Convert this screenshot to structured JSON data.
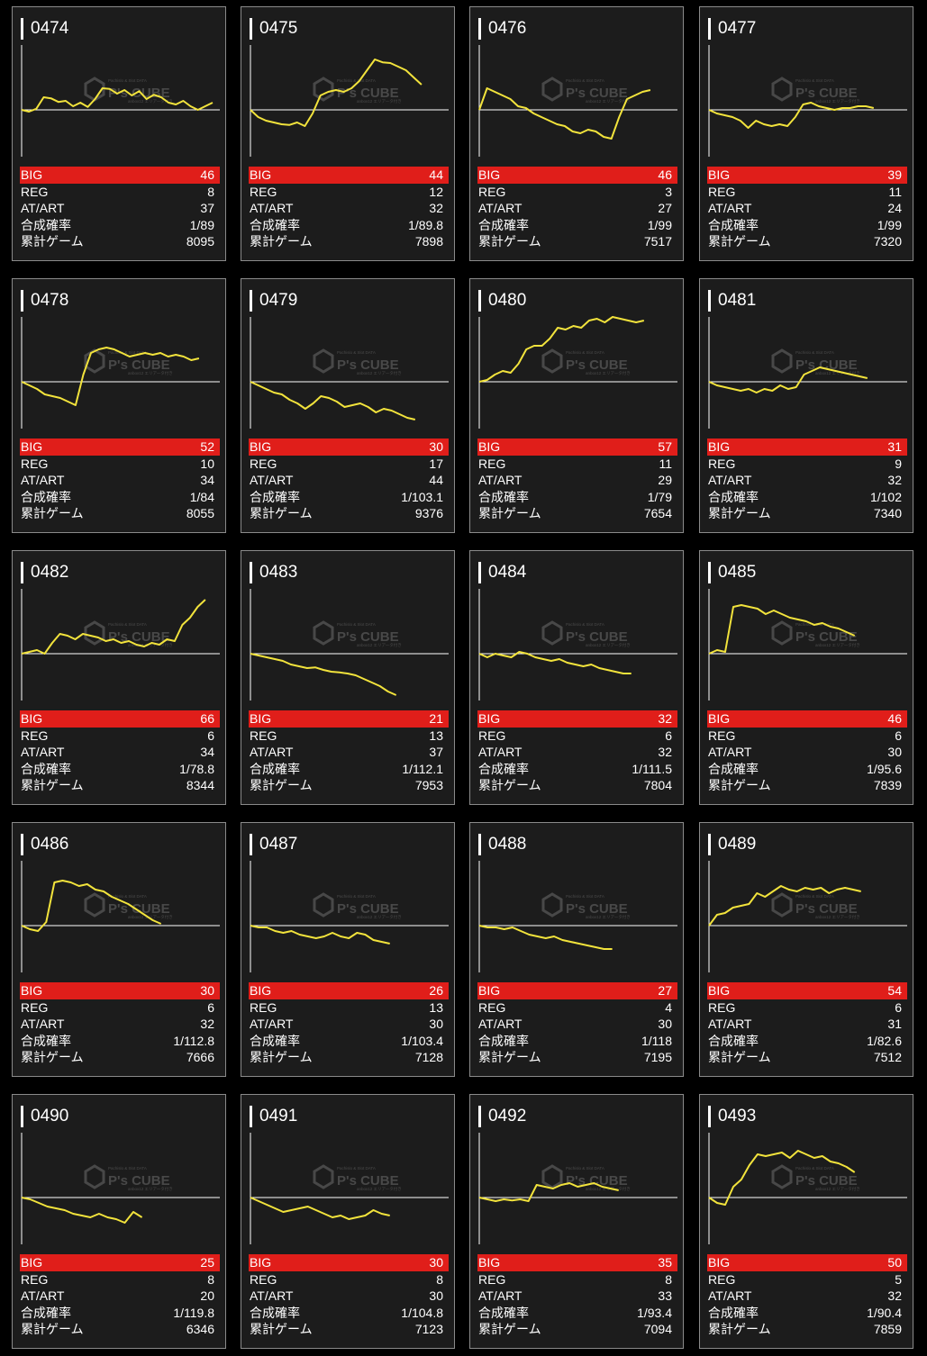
{
  "labels": {
    "big": "BIG",
    "reg": "REG",
    "atart": "AT/ART",
    "prob": "合成確率",
    "games": "累計ゲーム"
  },
  "watermark": {
    "brand": "P's CUBE",
    "top_text": "Pachislo & Slot DATA",
    "sub_text": "anbox12 エリアータ付き"
  },
  "colors": {
    "background": "#000000",
    "card": "#1c1c1c",
    "border": "#8a8a8a",
    "line": "#f2e33c",
    "big_bar": "#e01e1a",
    "axis": "#ffffff"
  },
  "machines": [
    {
      "id": "0474",
      "big": "46",
      "reg": "8",
      "atart": "37",
      "prob": "1/89",
      "games": "8095",
      "graph": [
        0,
        -0.05,
        0.03,
        0.35,
        0.32,
        0.22,
        0.25,
        0.1,
        0.2,
        0.08,
        0.3,
        0.6,
        0.58,
        0.45,
        0.55,
        0.4,
        0.52,
        0.3,
        0.42,
        0.35,
        0.2,
        0.15,
        0.25,
        0.1,
        0.0,
        0.1,
        0.2
      ]
    },
    {
      "id": "0475",
      "big": "44",
      "reg": "12",
      "atart": "32",
      "prob": "1/89.8",
      "games": "7898",
      "graph": [
        0,
        -0.2,
        -0.3,
        -0.35,
        -0.4,
        -0.42,
        -0.35,
        -0.45,
        -0.1,
        0.4,
        0.5,
        0.55,
        0.5,
        0.6,
        0.8,
        1.1,
        1.4,
        1.32,
        1.3,
        1.2,
        1.1,
        0.9,
        0.7
      ]
    },
    {
      "id": "0476",
      "big": "46",
      "reg": "3",
      "atart": "27",
      "prob": "1/99",
      "games": "7517",
      "graph": [
        0,
        0.6,
        0.5,
        0.4,
        0.3,
        0.1,
        0.05,
        -0.1,
        -0.2,
        -0.3,
        -0.4,
        -0.45,
        -0.6,
        -0.65,
        -0.55,
        -0.6,
        -0.75,
        -0.8,
        -0.2,
        0.3,
        0.4,
        0.5,
        0.55
      ]
    },
    {
      "id": "0477",
      "big": "39",
      "reg": "11",
      "atart": "24",
      "prob": "1/99",
      "games": "7320",
      "graph": [
        0,
        -0.1,
        -0.15,
        -0.2,
        -0.3,
        -0.5,
        -0.3,
        -0.4,
        -0.45,
        -0.4,
        -0.45,
        -0.2,
        0.15,
        0.2,
        0.1,
        0.05,
        0.0,
        0.05,
        0.05,
        0.1,
        0.1,
        0.05
      ]
    },
    {
      "id": "0478",
      "big": "52",
      "reg": "10",
      "atart": "34",
      "prob": "1/84",
      "games": "8055",
      "graph": [
        0,
        -0.1,
        -0.2,
        -0.35,
        -0.4,
        -0.45,
        -0.55,
        -0.65,
        0.2,
        0.8,
        0.9,
        0.95,
        0.9,
        0.8,
        0.7,
        0.75,
        0.8,
        0.75,
        0.8,
        0.7,
        0.75,
        0.7,
        0.6,
        0.65
      ]
    },
    {
      "id": "0479",
      "big": "30",
      "reg": "17",
      "atart": "44",
      "prob": "1/103.1",
      "games": "9376",
      "graph": [
        0,
        -0.1,
        -0.2,
        -0.3,
        -0.35,
        -0.5,
        -0.6,
        -0.75,
        -0.6,
        -0.4,
        -0.45,
        -0.55,
        -0.7,
        -0.65,
        -0.6,
        -0.7,
        -0.85,
        -0.75,
        -0.8,
        -0.9,
        -1.0,
        -1.05
      ]
    },
    {
      "id": "0480",
      "big": "57",
      "reg": "11",
      "atart": "29",
      "prob": "1/79",
      "games": "7654",
      "graph": [
        0,
        0.05,
        0.2,
        0.3,
        0.25,
        0.5,
        0.9,
        1.0,
        1.0,
        1.2,
        1.5,
        1.45,
        1.55,
        1.5,
        1.7,
        1.75,
        1.65,
        1.8,
        1.75,
        1.7,
        1.65,
        1.7
      ]
    },
    {
      "id": "0481",
      "big": "31",
      "reg": "9",
      "atart": "32",
      "prob": "1/102",
      "games": "7340",
      "graph": [
        0,
        -0.1,
        -0.15,
        -0.2,
        -0.25,
        -0.2,
        -0.3,
        -0.2,
        -0.25,
        -0.1,
        -0.2,
        -0.15,
        0.2,
        0.3,
        0.4,
        0.35,
        0.3,
        0.25,
        0.2,
        0.15,
        0.1
      ]
    },
    {
      "id": "0482",
      "big": "66",
      "reg": "6",
      "atart": "34",
      "prob": "1/78.8",
      "games": "8344",
      "graph": [
        0,
        0.05,
        0.1,
        0.0,
        0.3,
        0.55,
        0.5,
        0.4,
        0.55,
        0.5,
        0.45,
        0.35,
        0.4,
        0.3,
        0.35,
        0.25,
        0.2,
        0.3,
        0.25,
        0.4,
        0.35,
        0.8,
        1.0,
        1.3,
        1.5
      ]
    },
    {
      "id": "0483",
      "big": "21",
      "reg": "13",
      "atart": "37",
      "prob": "1/112.1",
      "games": "7953",
      "graph": [
        0,
        -0.05,
        -0.1,
        -0.15,
        -0.2,
        -0.3,
        -0.35,
        -0.4,
        -0.38,
        -0.45,
        -0.5,
        -0.52,
        -0.55,
        -0.6,
        -0.7,
        -0.8,
        -0.9,
        -1.05,
        -1.15
      ]
    },
    {
      "id": "0484",
      "big": "32",
      "reg": "6",
      "atart": "32",
      "prob": "1/111.5",
      "games": "7804",
      "graph": [
        0,
        -0.1,
        0.0,
        -0.05,
        -0.1,
        0.05,
        0.0,
        -0.1,
        -0.15,
        -0.2,
        -0.15,
        -0.25,
        -0.3,
        -0.35,
        -0.3,
        -0.4,
        -0.45,
        -0.5,
        -0.55,
        -0.55
      ]
    },
    {
      "id": "0485",
      "big": "46",
      "reg": "6",
      "atart": "30",
      "prob": "1/95.6",
      "games": "7839",
      "graph": [
        0,
        0.1,
        0.05,
        1.3,
        1.35,
        1.3,
        1.25,
        1.1,
        1.2,
        1.1,
        1.0,
        0.95,
        0.9,
        0.8,
        0.85,
        0.75,
        0.7,
        0.6,
        0.5
      ]
    },
    {
      "id": "0486",
      "big": "30",
      "reg": "6",
      "atart": "32",
      "prob": "1/112.8",
      "games": "7666",
      "graph": [
        0,
        -0.1,
        -0.15,
        0.1,
        1.2,
        1.25,
        1.2,
        1.1,
        1.15,
        1.0,
        0.95,
        0.8,
        0.7,
        0.6,
        0.45,
        0.3,
        0.15,
        0.05
      ]
    },
    {
      "id": "0487",
      "big": "26",
      "reg": "13",
      "atart": "30",
      "prob": "1/103.4",
      "games": "7128",
      "graph": [
        0,
        -0.05,
        -0.05,
        -0.15,
        -0.2,
        -0.15,
        -0.25,
        -0.3,
        -0.35,
        -0.3,
        -0.2,
        -0.3,
        -0.35,
        -0.2,
        -0.25,
        -0.4,
        -0.45,
        -0.5
      ]
    },
    {
      "id": "0488",
      "big": "27",
      "reg": "4",
      "atart": "30",
      "prob": "1/118",
      "games": "7195",
      "graph": [
        0,
        -0.05,
        -0.05,
        -0.1,
        -0.05,
        -0.15,
        -0.25,
        -0.3,
        -0.35,
        -0.3,
        -0.4,
        -0.45,
        -0.5,
        -0.55,
        -0.6,
        -0.65,
        -0.65
      ]
    },
    {
      "id": "0489",
      "big": "54",
      "reg": "6",
      "atart": "31",
      "prob": "1/82.6",
      "games": "7512",
      "graph": [
        0,
        0.3,
        0.35,
        0.5,
        0.55,
        0.6,
        0.9,
        0.8,
        0.95,
        1.1,
        1.0,
        0.95,
        1.05,
        1.0,
        1.05,
        0.9,
        1.0,
        1.05,
        1.0,
        0.95
      ]
    },
    {
      "id": "0490",
      "big": "25",
      "reg": "8",
      "atart": "20",
      "prob": "1/119.8",
      "games": "6346",
      "graph": [
        0,
        -0.05,
        -0.15,
        -0.25,
        -0.3,
        -0.35,
        -0.45,
        -0.5,
        -0.55,
        -0.45,
        -0.55,
        -0.6,
        -0.7,
        -0.4,
        -0.55
      ]
    },
    {
      "id": "0491",
      "big": "30",
      "reg": "8",
      "atart": "30",
      "prob": "1/104.8",
      "games": "7123",
      "graph": [
        0,
        -0.1,
        -0.2,
        -0.3,
        -0.4,
        -0.35,
        -0.3,
        -0.25,
        -0.35,
        -0.45,
        -0.55,
        -0.5,
        -0.6,
        -0.55,
        -0.5,
        -0.35,
        -0.45,
        -0.5
      ]
    },
    {
      "id": "0492",
      "big": "35",
      "reg": "8",
      "atart": "33",
      "prob": "1/93.4",
      "games": "7094",
      "graph": [
        0,
        -0.05,
        -0.1,
        -0.05,
        -0.08,
        -0.05,
        -0.1,
        0.35,
        0.3,
        0.25,
        0.35,
        0.4,
        0.3,
        0.35,
        0.4,
        0.3,
        0.25,
        0.2
      ]
    },
    {
      "id": "0493",
      "big": "50",
      "reg": "5",
      "atart": "32",
      "prob": "1/90.4",
      "games": "7859",
      "graph": [
        0,
        -0.15,
        -0.2,
        0.3,
        0.5,
        0.9,
        1.2,
        1.15,
        1.2,
        1.25,
        1.1,
        1.3,
        1.2,
        1.1,
        1.15,
        1.0,
        0.95,
        0.85,
        0.7
      ]
    }
  ]
}
